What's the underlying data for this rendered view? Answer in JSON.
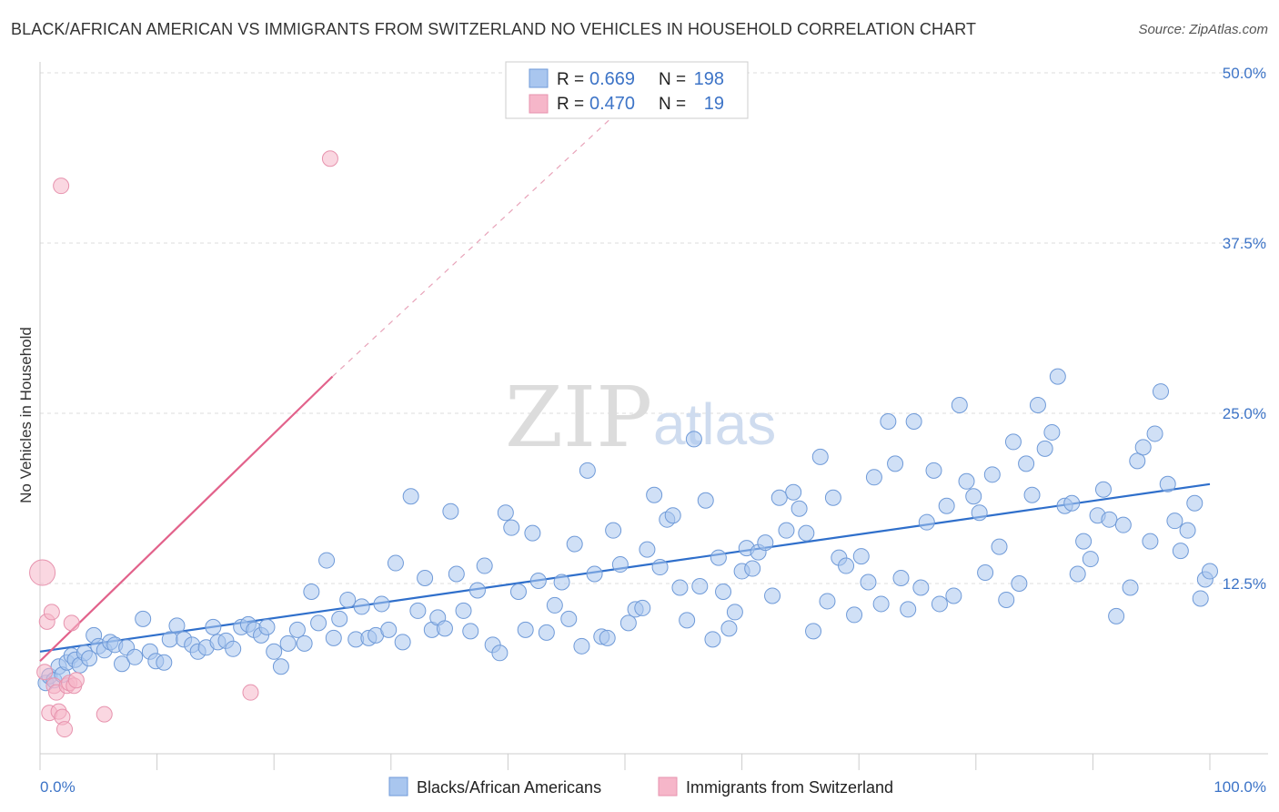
{
  "title": "BLACK/AFRICAN AMERICAN VS IMMIGRANTS FROM SWITZERLAND NO VEHICLES IN HOUSEHOLD CORRELATION CHART",
  "source": "Source: ZipAtlas.com",
  "watermark": {
    "zip": "ZIP",
    "atlas": "atlas"
  },
  "stats_box": {
    "rows": [
      {
        "r_label": "R =",
        "r_value": "0.669",
        "n_label": "N =",
        "n_value": "198",
        "color": "#a9c6ef"
      },
      {
        "r_label": "R =",
        "r_value": "0.470",
        "n_label": "N =",
        "n_value": "19",
        "color": "#f6b6c9"
      }
    ]
  },
  "chart_data": {
    "type": "scatter",
    "title": "BLACK/AFRICAN AMERICAN VS IMMIGRANTS FROM SWITZERLAND NO VEHICLES IN HOUSEHOLD CORRELATION CHART",
    "xlabel": "",
    "ylabel": "No Vehicles in Household",
    "xlim": [
      0,
      100
    ],
    "ylim": [
      0,
      50
    ],
    "x_tick_labels": [
      "0.0%",
      "100.0%"
    ],
    "y_tick_labels": [
      "12.5%",
      "25.0%",
      "37.5%",
      "50.0%"
    ],
    "y_ticks": [
      12.5,
      25.0,
      37.5,
      50.0
    ],
    "grid": true,
    "legend_position": "bottom",
    "series": [
      {
        "name": "Blacks/African Americans",
        "color": "#a9c6ef",
        "stroke": "#6f9ad8",
        "trend": {
          "x": [
            0,
            100
          ],
          "y": [
            7.5,
            19.8
          ],
          "color": "#2f6fcb"
        },
        "points": [
          [
            0.5,
            5.2
          ],
          [
            0.8,
            5.7
          ],
          [
            1.2,
            5.4
          ],
          [
            1.6,
            6.4
          ],
          [
            1.9,
            5.8
          ],
          [
            2.3,
            6.7
          ],
          [
            2.7,
            7.2
          ],
          [
            3.0,
            6.9
          ],
          [
            3.4,
            6.5
          ],
          [
            3.8,
            7.4
          ],
          [
            4.2,
            7.0
          ],
          [
            4.6,
            8.7
          ],
          [
            5.0,
            7.9
          ],
          [
            5.5,
            7.6
          ],
          [
            6.0,
            8.2
          ],
          [
            6.4,
            8.0
          ],
          [
            7.0,
            6.6
          ],
          [
            7.4,
            7.8
          ],
          [
            8.1,
            7.1
          ],
          [
            8.8,
            9.9
          ],
          [
            9.4,
            7.5
          ],
          [
            9.9,
            6.8
          ],
          [
            10.6,
            6.7
          ],
          [
            11.1,
            8.4
          ],
          [
            11.7,
            9.4
          ],
          [
            12.3,
            8.4
          ],
          [
            13.0,
            8.0
          ],
          [
            13.5,
            7.5
          ],
          [
            14.2,
            7.8
          ],
          [
            14.8,
            9.3
          ],
          [
            15.2,
            8.2
          ],
          [
            15.9,
            8.3
          ],
          [
            16.5,
            7.7
          ],
          [
            17.2,
            9.3
          ],
          [
            17.8,
            9.5
          ],
          [
            18.3,
            9.1
          ],
          [
            18.9,
            8.7
          ],
          [
            19.4,
            9.3
          ],
          [
            20.0,
            7.5
          ],
          [
            20.6,
            6.4
          ],
          [
            21.2,
            8.1
          ],
          [
            22.0,
            9.1
          ],
          [
            22.6,
            8.1
          ],
          [
            23.2,
            11.9
          ],
          [
            23.8,
            9.6
          ],
          [
            24.5,
            14.2
          ],
          [
            25.1,
            8.5
          ],
          [
            25.6,
            9.9
          ],
          [
            26.3,
            11.3
          ],
          [
            27.0,
            8.4
          ],
          [
            27.5,
            10.8
          ],
          [
            28.1,
            8.5
          ],
          [
            28.7,
            8.7
          ],
          [
            29.2,
            11.0
          ],
          [
            29.8,
            9.1
          ],
          [
            30.4,
            14.0
          ],
          [
            31.0,
            8.2
          ],
          [
            31.7,
            18.9
          ],
          [
            32.3,
            10.5
          ],
          [
            32.9,
            12.9
          ],
          [
            33.5,
            9.1
          ],
          [
            34.0,
            10.0
          ],
          [
            34.6,
            9.2
          ],
          [
            35.1,
            17.8
          ],
          [
            35.6,
            13.2
          ],
          [
            36.2,
            10.5
          ],
          [
            36.8,
            9.0
          ],
          [
            37.4,
            12.0
          ],
          [
            38.0,
            13.8
          ],
          [
            38.7,
            8.0
          ],
          [
            39.3,
            7.4
          ],
          [
            39.8,
            17.7
          ],
          [
            40.3,
            16.6
          ],
          [
            40.9,
            11.9
          ],
          [
            41.5,
            9.1
          ],
          [
            42.1,
            16.2
          ],
          [
            42.6,
            12.7
          ],
          [
            43.3,
            8.9
          ],
          [
            44.0,
            10.9
          ],
          [
            44.6,
            12.6
          ],
          [
            45.2,
            9.9
          ],
          [
            45.7,
            15.4
          ],
          [
            46.3,
            7.9
          ],
          [
            46.8,
            20.8
          ],
          [
            47.4,
            13.2
          ],
          [
            48.0,
            8.6
          ],
          [
            48.5,
            8.5
          ],
          [
            49.0,
            16.4
          ],
          [
            49.6,
            13.9
          ],
          [
            50.3,
            9.6
          ],
          [
            50.9,
            10.6
          ],
          [
            51.5,
            10.7
          ],
          [
            51.9,
            15.0
          ],
          [
            52.5,
            19.0
          ],
          [
            53.0,
            13.7
          ],
          [
            53.6,
            17.2
          ],
          [
            54.1,
            17.5
          ],
          [
            54.7,
            12.2
          ],
          [
            55.3,
            9.8
          ],
          [
            55.9,
            23.1
          ],
          [
            56.4,
            12.3
          ],
          [
            56.9,
            18.6
          ],
          [
            57.5,
            8.4
          ],
          [
            58.0,
            14.4
          ],
          [
            58.4,
            11.9
          ],
          [
            58.9,
            9.2
          ],
          [
            59.4,
            10.4
          ],
          [
            60.0,
            13.4
          ],
          [
            60.4,
            15.1
          ],
          [
            60.9,
            13.6
          ],
          [
            61.4,
            14.8
          ],
          [
            62.0,
            15.5
          ],
          [
            62.6,
            11.6
          ],
          [
            63.2,
            18.8
          ],
          [
            63.8,
            16.4
          ],
          [
            64.4,
            19.2
          ],
          [
            64.9,
            18.0
          ],
          [
            65.5,
            16.2
          ],
          [
            66.1,
            9.0
          ],
          [
            66.7,
            21.8
          ],
          [
            67.3,
            11.2
          ],
          [
            67.8,
            18.8
          ],
          [
            68.3,
            14.4
          ],
          [
            68.9,
            13.8
          ],
          [
            69.6,
            10.2
          ],
          [
            70.2,
            14.5
          ],
          [
            70.8,
            12.6
          ],
          [
            71.3,
            20.3
          ],
          [
            71.9,
            11.0
          ],
          [
            72.5,
            24.4
          ],
          [
            73.1,
            21.3
          ],
          [
            73.6,
            12.9
          ],
          [
            74.2,
            10.6
          ],
          [
            74.7,
            24.4
          ],
          [
            75.3,
            12.2
          ],
          [
            75.8,
            17.0
          ],
          [
            76.4,
            20.8
          ],
          [
            76.9,
            11.0
          ],
          [
            77.5,
            18.2
          ],
          [
            78.1,
            11.6
          ],
          [
            78.6,
            25.6
          ],
          [
            79.2,
            20.0
          ],
          [
            79.8,
            18.9
          ],
          [
            80.3,
            17.7
          ],
          [
            80.8,
            13.3
          ],
          [
            81.4,
            20.5
          ],
          [
            82.0,
            15.2
          ],
          [
            82.6,
            11.3
          ],
          [
            83.2,
            22.9
          ],
          [
            83.7,
            12.5
          ],
          [
            84.3,
            21.3
          ],
          [
            84.8,
            19.0
          ],
          [
            85.3,
            25.6
          ],
          [
            85.9,
            22.4
          ],
          [
            86.5,
            23.6
          ],
          [
            87.0,
            27.7
          ],
          [
            87.6,
            18.2
          ],
          [
            88.2,
            18.4
          ],
          [
            88.7,
            13.2
          ],
          [
            89.2,
            15.6
          ],
          [
            89.8,
            14.3
          ],
          [
            90.4,
            17.5
          ],
          [
            90.9,
            19.4
          ],
          [
            91.4,
            17.2
          ],
          [
            92.0,
            10.1
          ],
          [
            92.6,
            16.8
          ],
          [
            93.2,
            12.2
          ],
          [
            93.8,
            21.5
          ],
          [
            94.3,
            22.5
          ],
          [
            94.9,
            15.6
          ],
          [
            95.3,
            23.5
          ],
          [
            95.8,
            26.6
          ],
          [
            96.4,
            19.8
          ],
          [
            97.0,
            17.1
          ],
          [
            97.5,
            14.9
          ],
          [
            98.1,
            16.4
          ],
          [
            98.7,
            18.4
          ],
          [
            99.2,
            11.4
          ],
          [
            99.6,
            12.8
          ],
          [
            100.0,
            13.4
          ]
        ]
      },
      {
        "name": "Immigrants from Switzerland",
        "color": "#f6b6c9",
        "stroke": "#e793ae",
        "trend": {
          "x": [
            0,
            25
          ],
          "y": [
            6.8,
            27.7
          ],
          "dash_to": [
            53,
            50
          ],
          "color": "#e2628b"
        },
        "points": [
          [
            0.2,
            13.3
          ],
          [
            0.4,
            6.0
          ],
          [
            0.6,
            9.7
          ],
          [
            0.8,
            3.0
          ],
          [
            1.0,
            10.4
          ],
          [
            1.2,
            5.0
          ],
          [
            1.4,
            4.5
          ],
          [
            1.6,
            3.1
          ],
          [
            1.8,
            41.7
          ],
          [
            1.9,
            2.7
          ],
          [
            2.1,
            1.8
          ],
          [
            2.3,
            5.0
          ],
          [
            2.5,
            5.2
          ],
          [
            2.7,
            9.6
          ],
          [
            2.9,
            5.0
          ],
          [
            3.1,
            5.4
          ],
          [
            5.5,
            2.9
          ],
          [
            18.0,
            4.5
          ],
          [
            24.8,
            43.7
          ]
        ]
      }
    ]
  },
  "legend": {
    "items": [
      {
        "label": "Blacks/African Americans",
        "color": "#a9c6ef"
      },
      {
        "label": "Immigrants from Switzerland",
        "color": "#f6b6c9"
      }
    ]
  }
}
